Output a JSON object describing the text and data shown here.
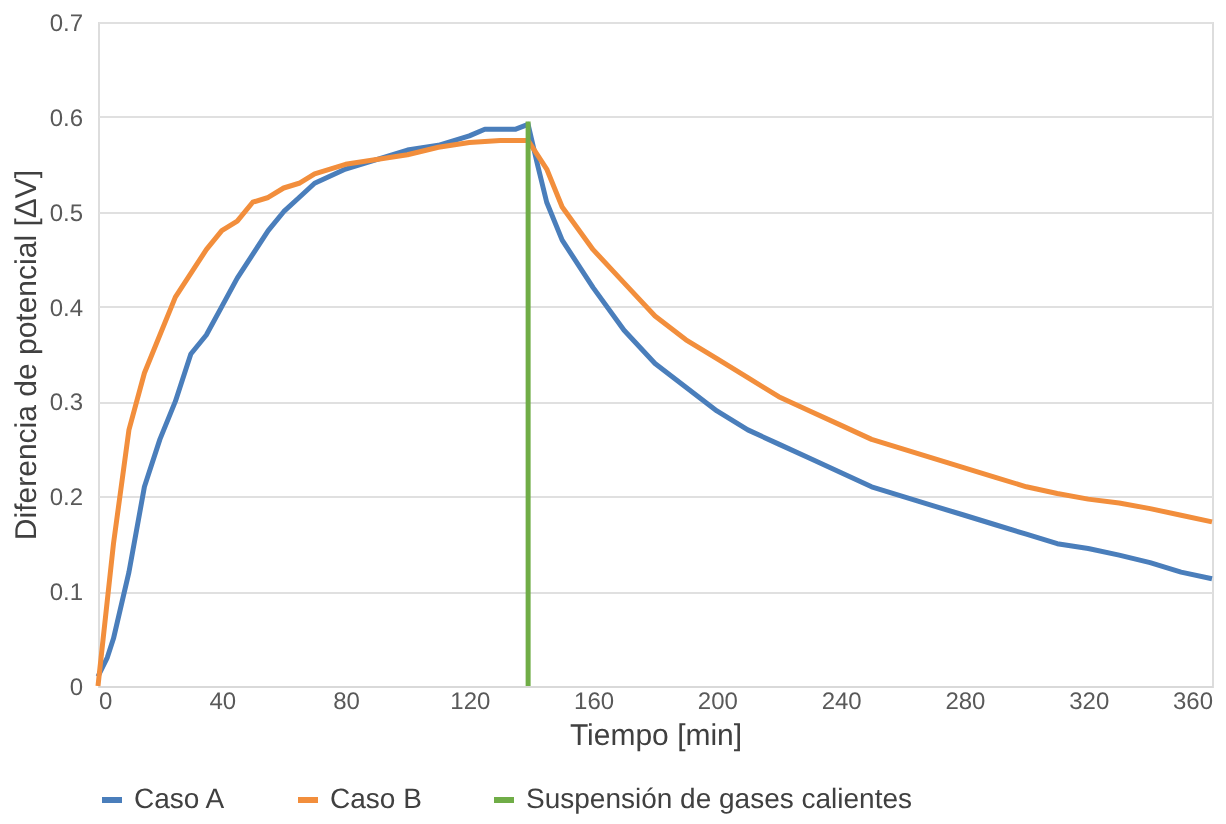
{
  "chart_data": {
    "type": "line",
    "xlabel": "Tiempo [min]",
    "ylabel": "Diferencia de potencial [ΔV]",
    "xlim": [
      0,
      360
    ],
    "xticks": [
      0,
      40,
      80,
      120,
      160,
      200,
      240,
      280,
      320,
      360
    ],
    "ylim": [
      0,
      0.7
    ],
    "yticks": [
      0,
      0.1,
      0.2,
      0.3,
      0.4,
      0.5,
      0.6,
      0.7
    ],
    "grid": "y",
    "legend": "bottom",
    "marker": "none",
    "line_style": "solid",
    "series": [
      {
        "name": "Caso A",
        "color": "#4a7ebb",
        "x": [
          0,
          3,
          5,
          10,
          15,
          20,
          25,
          30,
          35,
          40,
          45,
          50,
          55,
          60,
          65,
          70,
          80,
          90,
          100,
          110,
          120,
          125,
          130,
          135,
          139,
          142,
          145,
          150,
          160,
          170,
          180,
          190,
          200,
          210,
          220,
          230,
          240,
          250,
          260,
          270,
          280,
          290,
          300,
          310,
          320,
          330,
          340,
          350,
          360
        ],
        "values": [
          0.01,
          0.03,
          0.05,
          0.12,
          0.21,
          0.26,
          0.3,
          0.35,
          0.37,
          0.4,
          0.43,
          0.455,
          0.48,
          0.5,
          0.515,
          0.53,
          0.545,
          0.555,
          0.565,
          0.57,
          0.58,
          0.587,
          0.587,
          0.587,
          0.592,
          0.55,
          0.51,
          0.47,
          0.42,
          0.375,
          0.34,
          0.315,
          0.29,
          0.27,
          0.255,
          0.24,
          0.225,
          0.21,
          0.2,
          0.19,
          0.18,
          0.17,
          0.16,
          0.15,
          0.145,
          0.138,
          0.13,
          0.12,
          0.113
        ]
      },
      {
        "name": "Caso B",
        "color": "#f28e3c",
        "x": [
          0,
          5,
          10,
          15,
          20,
          25,
          30,
          35,
          40,
          45,
          50,
          55,
          60,
          65,
          70,
          80,
          90,
          100,
          110,
          120,
          130,
          139,
          145,
          150,
          160,
          170,
          180,
          190,
          200,
          210,
          220,
          230,
          240,
          250,
          260,
          270,
          280,
          290,
          300,
          310,
          320,
          330,
          340,
          350,
          360
        ],
        "values": [
          0.0,
          0.15,
          0.27,
          0.33,
          0.37,
          0.41,
          0.435,
          0.46,
          0.48,
          0.49,
          0.51,
          0.515,
          0.525,
          0.53,
          0.54,
          0.55,
          0.555,
          0.56,
          0.568,
          0.573,
          0.575,
          0.575,
          0.545,
          0.505,
          0.46,
          0.425,
          0.39,
          0.365,
          0.345,
          0.325,
          0.305,
          0.29,
          0.275,
          0.26,
          0.25,
          0.24,
          0.23,
          0.22,
          0.21,
          0.203,
          0.197,
          0.193,
          0.187,
          0.18,
          0.173
        ]
      },
      {
        "name": "Suspensión de gases calientes",
        "color": "#70ad47",
        "x": [
          139,
          139
        ],
        "values": [
          0,
          0.595
        ]
      }
    ]
  }
}
